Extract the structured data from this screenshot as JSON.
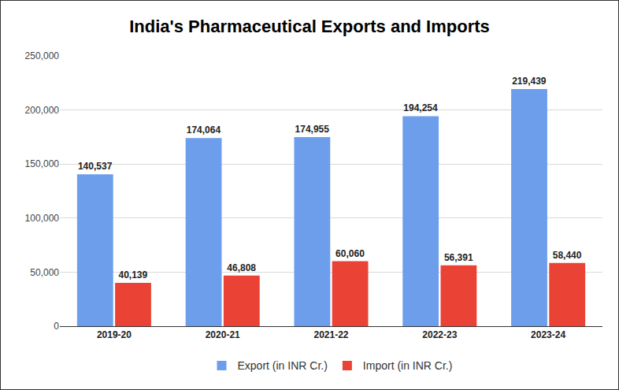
{
  "chart_data": {
    "type": "bar",
    "title": "India's Pharmaceutical Exports and Imports",
    "categories": [
      "2019-20",
      "2020-21",
      "2021-22",
      "2022-23",
      "2023-24"
    ],
    "series": [
      {
        "name": "Export (in INR Cr.)",
        "color": "#6d9eeb",
        "values": [
          140537,
          174064,
          174955,
          194254,
          219439
        ],
        "value_labels": [
          "140,537",
          "174,064",
          "174,955",
          "194,254",
          "219,439"
        ]
      },
      {
        "name": "Import (in INR Cr.)",
        "color": "#ea4335",
        "values": [
          40139,
          46808,
          60060,
          56391,
          58440
        ],
        "value_labels": [
          "40,139",
          "46,808",
          "60,060",
          "56,391",
          "58,440"
        ]
      }
    ],
    "ylim": [
      0,
      250000
    ],
    "yticks": [
      0,
      {
        "value": 50000,
        "label": "50,000"
      },
      {
        "value": 100000,
        "label": "100,000"
      },
      {
        "value": 150000,
        "label": "150,000"
      },
      {
        "value": 200000,
        "label": "200,000"
      },
      {
        "value": 250000,
        "label": "250,000"
      }
    ],
    "grid": true,
    "legend": "bottom",
    "data_labels": true
  }
}
